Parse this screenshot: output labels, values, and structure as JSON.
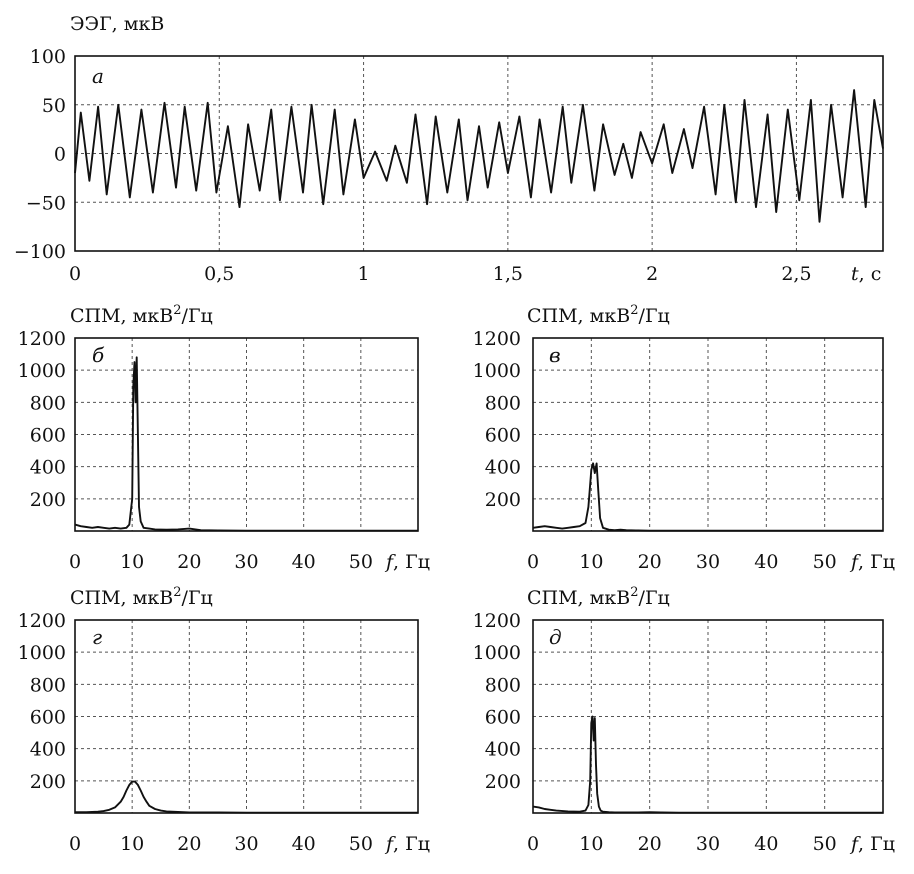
{
  "chart_data": [
    {
      "id": "a",
      "type": "line",
      "panel_label": "а",
      "ylabel": "ЭЭГ, мкВ",
      "xlabel_var": "t",
      "xlabel_unit": ", с",
      "xlim": [
        0,
        2.8
      ],
      "ylim": [
        -100,
        100
      ],
      "xticks": [
        0,
        0.5,
        1,
        1.5,
        2,
        2.5
      ],
      "xtick_labels": [
        "0",
        "0,5",
        "1",
        "1,5",
        "2",
        "2,5"
      ],
      "yticks": [
        -100,
        -50,
        0,
        50,
        100
      ],
      "ytick_labels": [
        "−100",
        "−50",
        "0",
        "50",
        "100"
      ],
      "grid": true,
      "series": [
        {
          "x": [
            0.0,
            0.02,
            0.05,
            0.08,
            0.11,
            0.15,
            0.19,
            0.23,
            0.27,
            0.31,
            0.35,
            0.38,
            0.42,
            0.46,
            0.49,
            0.53,
            0.57,
            0.6,
            0.64,
            0.68,
            0.71,
            0.75,
            0.79,
            0.82,
            0.86,
            0.9,
            0.93,
            0.97,
            1.0,
            1.04,
            1.08,
            1.11,
            1.15,
            1.18,
            1.22,
            1.25,
            1.29,
            1.33,
            1.36,
            1.4,
            1.43,
            1.47,
            1.5,
            1.54,
            1.58,
            1.61,
            1.65,
            1.69,
            1.72,
            1.76,
            1.8,
            1.83,
            1.87,
            1.9,
            1.93,
            1.96,
            2.0,
            2.04,
            2.07,
            2.11,
            2.14,
            2.18,
            2.22,
            2.25,
            2.29,
            2.32,
            2.36,
            2.4,
            2.43,
            2.47,
            2.51,
            2.55,
            2.58,
            2.62,
            2.66,
            2.7,
            2.74,
            2.77,
            2.8
          ],
          "y": [
            -20,
            42,
            -28,
            48,
            -42,
            50,
            -45,
            45,
            -40,
            52,
            -35,
            48,
            -38,
            52,
            -40,
            28,
            -55,
            30,
            -38,
            45,
            -48,
            48,
            -40,
            50,
            -52,
            45,
            -42,
            35,
            -25,
            2,
            -28,
            8,
            -30,
            40,
            -52,
            38,
            -40,
            35,
            -48,
            28,
            -35,
            32,
            -20,
            38,
            -45,
            35,
            -40,
            48,
            -30,
            50,
            -38,
            30,
            -22,
            10,
            -25,
            22,
            -10,
            30,
            -20,
            25,
            -15,
            48,
            -42,
            50,
            -50,
            55,
            -55,
            40,
            -60,
            45,
            -48,
            55,
            -70,
            50,
            -45,
            65,
            -55,
            55,
            5
          ]
        }
      ]
    },
    {
      "id": "b",
      "type": "line",
      "panel_label": "б",
      "ylabel_text": "СПМ, мкВ",
      "ylabel_sup": "2",
      "ylabel_tail": "/Гц",
      "xlabel_var": "f",
      "xlabel_unit": ", Гц",
      "xlim": [
        0,
        60
      ],
      "ylim": [
        0,
        1200
      ],
      "xticks": [
        0,
        10,
        20,
        30,
        40,
        50
      ],
      "xtick_labels": [
        "0",
        "10",
        "20",
        "30",
        "40",
        "50"
      ],
      "yticks": [
        200,
        400,
        600,
        800,
        1000,
        1200
      ],
      "ytick_labels": [
        "200",
        "400",
        "600",
        "800",
        "1000",
        "1200"
      ],
      "grid": true,
      "series": [
        {
          "x": [
            0,
            1,
            2,
            3,
            4,
            5,
            6,
            7,
            8,
            9,
            9.5,
            10,
            10.2,
            10.4,
            10.6,
            10.8,
            11,
            11.2,
            11.5,
            12,
            13,
            14,
            16,
            18,
            20,
            22,
            25,
            30,
            40,
            50,
            60
          ],
          "y": [
            40,
            30,
            25,
            20,
            25,
            20,
            15,
            20,
            15,
            20,
            40,
            200,
            900,
            1050,
            800,
            1080,
            600,
            150,
            60,
            20,
            15,
            10,
            8,
            10,
            15,
            5,
            3,
            2,
            2,
            2,
            2
          ]
        }
      ]
    },
    {
      "id": "c",
      "type": "line",
      "panel_label": "в",
      "ylabel_text": "СПМ, мкВ",
      "ylabel_sup": "2",
      "ylabel_tail": "/Гц",
      "xlabel_var": "f",
      "xlabel_unit": ", Гц",
      "xlim": [
        0,
        60
      ],
      "ylim": [
        0,
        1200
      ],
      "xticks": [
        0,
        10,
        20,
        30,
        40,
        50
      ],
      "xtick_labels": [
        "0",
        "10",
        "20",
        "30",
        "40",
        "50"
      ],
      "yticks": [
        200,
        400,
        600,
        800,
        1000,
        1200
      ],
      "ytick_labels": [
        "200",
        "400",
        "600",
        "800",
        "1000",
        "1200"
      ],
      "grid": true,
      "series": [
        {
          "x": [
            0,
            1,
            2,
            3,
            4,
            5,
            6,
            7,
            8,
            9,
            9.5,
            10,
            10.3,
            10.6,
            10.9,
            11.2,
            11.5,
            12,
            13,
            14,
            15,
            16,
            18,
            20,
            25,
            30,
            40,
            50,
            60
          ],
          "y": [
            20,
            25,
            30,
            25,
            20,
            15,
            20,
            25,
            30,
            50,
            150,
            380,
            420,
            360,
            420,
            250,
            80,
            20,
            8,
            5,
            8,
            5,
            3,
            2,
            2,
            2,
            2,
            2,
            2
          ]
        }
      ]
    },
    {
      "id": "d",
      "type": "line",
      "panel_label": "г",
      "ylabel_text": "СПМ, мкВ",
      "ylabel_sup": "2",
      "ylabel_tail": "/Гц",
      "xlabel_var": "f",
      "xlabel_unit": ", Гц",
      "xlim": [
        0,
        60
      ],
      "ylim": [
        0,
        1200
      ],
      "xticks": [
        0,
        10,
        20,
        30,
        40,
        50
      ],
      "xtick_labels": [
        "0",
        "10",
        "20",
        "30",
        "40",
        "50"
      ],
      "yticks": [
        200,
        400,
        600,
        800,
        1000,
        1200
      ],
      "ytick_labels": [
        "200",
        "400",
        "600",
        "800",
        "1000",
        "1200"
      ],
      "grid": true,
      "series": [
        {
          "x": [
            0,
            2,
            4,
            5,
            6,
            7,
            8,
            8.5,
            9,
            9.5,
            10,
            10.5,
            11,
            11.5,
            12,
            12.5,
            13,
            14,
            15,
            16,
            18,
            20,
            25,
            30,
            40,
            50,
            60
          ],
          "y": [
            5,
            5,
            8,
            12,
            20,
            35,
            70,
            100,
            140,
            175,
            195,
            195,
            175,
            140,
            100,
            70,
            45,
            25,
            15,
            10,
            6,
            4,
            3,
            2,
            2,
            2,
            2
          ]
        }
      ]
    },
    {
      "id": "e",
      "type": "line",
      "panel_label": "д",
      "ylabel_text": "СПМ, мкВ",
      "ylabel_sup": "2",
      "ylabel_tail": "/Гц",
      "xlabel_var": "f",
      "xlabel_unit": ", Гц",
      "xlim": [
        0,
        60
      ],
      "ylim": [
        0,
        1200
      ],
      "xticks": [
        0,
        10,
        20,
        30,
        40,
        50
      ],
      "xtick_labels": [
        "0",
        "10",
        "20",
        "30",
        "40",
        "50"
      ],
      "yticks": [
        200,
        400,
        600,
        800,
        1000,
        1200
      ],
      "ytick_labels": [
        "200",
        "400",
        "600",
        "800",
        "1000",
        "1200"
      ],
      "grid": true,
      "series": [
        {
          "x": [
            0,
            1,
            2,
            3,
            4,
            6,
            8,
            9,
            9.5,
            9.8,
            10,
            10.2,
            10.4,
            10.6,
            10.8,
            11,
            11.3,
            11.6,
            12,
            13,
            14,
            16,
            18,
            20,
            22,
            25,
            30,
            40,
            50,
            60
          ],
          "y": [
            40,
            35,
            25,
            20,
            15,
            10,
            8,
            15,
            50,
            200,
            560,
            600,
            450,
            590,
            300,
            120,
            40,
            15,
            8,
            5,
            4,
            4,
            3,
            5,
            3,
            2,
            2,
            2,
            2,
            2
          ]
        }
      ]
    }
  ]
}
